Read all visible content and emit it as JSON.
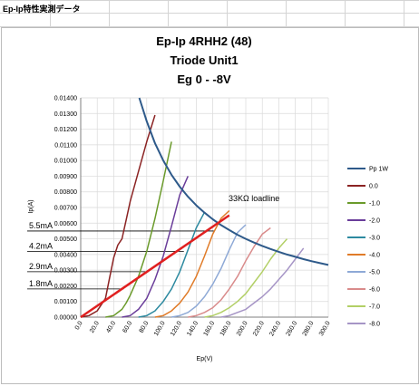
{
  "sheet": {
    "title": "Ep-Ip特性実測データ"
  },
  "chart_data": {
    "type": "line",
    "title_lines": [
      "Ep-Ip 4RHH2 (48)",
      "Triode Unit1",
      "Eg  0 - -8V"
    ],
    "xlabel": "Ep(V)",
    "ylabel": "Ip(A)",
    "xlim": [
      0,
      300
    ],
    "ylim": [
      0,
      0.014
    ],
    "x_ticks": [
      "0.0",
      "20.0",
      "40.0",
      "60.0",
      "80.0",
      "100.0",
      "120.0",
      "140.0",
      "160.0",
      "180.0",
      "200.0",
      "220.0",
      "240.0",
      "260.0",
      "280.0",
      "300.0"
    ],
    "y_ticks": [
      "0.00000",
      "0.00100",
      "0.00200",
      "0.00300",
      "0.00400",
      "0.00500",
      "0.00600",
      "0.00700",
      "0.00800",
      "0.00900",
      "0.01000",
      "0.01100",
      "0.01200",
      "0.01300",
      "0.01400"
    ],
    "grid": true,
    "legend_position": "right",
    "series": [
      {
        "name": "Pp 1W",
        "color": "#2e5a8a",
        "width": 2,
        "points": [
          [
            71,
            0.014
          ],
          [
            80,
            0.0125
          ],
          [
            90,
            0.0111
          ],
          [
            100,
            0.01
          ],
          [
            110,
            0.00909
          ],
          [
            120,
            0.00833
          ],
          [
            130,
            0.00769
          ],
          [
            140,
            0.00714
          ],
          [
            150,
            0.00667
          ],
          [
            160,
            0.00625
          ],
          [
            170,
            0.00588
          ],
          [
            180,
            0.00556
          ],
          [
            190,
            0.00526
          ],
          [
            200,
            0.005
          ],
          [
            210,
            0.00476
          ],
          [
            220,
            0.00455
          ],
          [
            230,
            0.00435
          ],
          [
            240,
            0.00417
          ],
          [
            250,
            0.004
          ],
          [
            260,
            0.00385
          ],
          [
            270,
            0.0037
          ],
          [
            280,
            0.00357
          ],
          [
            290,
            0.00345
          ],
          [
            300,
            0.00333
          ]
        ]
      },
      {
        "name": "0.0",
        "color": "#8b2323",
        "width": 1.5,
        "points": [
          [
            0,
            0
          ],
          [
            10,
            0.0001
          ],
          [
            20,
            0.0004
          ],
          [
            30,
            0.0012
          ],
          [
            35,
            0.0025
          ],
          [
            40,
            0.0038
          ],
          [
            45,
            0.0046
          ],
          [
            50,
            0.005
          ],
          [
            55,
            0.0062
          ],
          [
            60,
            0.0074
          ],
          [
            70,
            0.0093
          ],
          [
            80,
            0.0112
          ],
          [
            90,
            0.0129
          ]
        ]
      },
      {
        "name": "-1.0",
        "color": "#6a9a2a",
        "width": 1.5,
        "points": [
          [
            30,
            0
          ],
          [
            40,
            0.0001
          ],
          [
            50,
            0.0005
          ],
          [
            55,
            0.0009
          ],
          [
            60,
            0.0014
          ],
          [
            70,
            0.0026
          ],
          [
            80,
            0.0042
          ],
          [
            90,
            0.0063
          ],
          [
            100,
            0.0087
          ],
          [
            110,
            0.0112
          ]
        ]
      },
      {
        "name": "-2.0",
        "color": "#6a3d9a",
        "width": 1.5,
        "points": [
          [
            50,
            0
          ],
          [
            60,
            0.0001
          ],
          [
            70,
            0.0005
          ],
          [
            80,
            0.0012
          ],
          [
            90,
            0.0024
          ],
          [
            100,
            0.0039
          ],
          [
            110,
            0.0058
          ],
          [
            120,
            0.0078
          ],
          [
            130,
            0.009
          ]
        ]
      },
      {
        "name": "-3.0",
        "color": "#2d8aa0",
        "width": 1.5,
        "points": [
          [
            70,
            0
          ],
          [
            80,
            0.0001
          ],
          [
            90,
            0.0004
          ],
          [
            100,
            0.001
          ],
          [
            110,
            0.0018
          ],
          [
            120,
            0.0029
          ],
          [
            130,
            0.0043
          ],
          [
            140,
            0.0057
          ],
          [
            150,
            0.0067
          ]
        ]
      },
      {
        "name": "-4.0",
        "color": "#e07b28",
        "width": 1.5,
        "points": [
          [
            90,
            0
          ],
          [
            100,
            0.0001
          ],
          [
            110,
            0.0004
          ],
          [
            120,
            0.0009
          ],
          [
            130,
            0.0016
          ],
          [
            140,
            0.0026
          ],
          [
            150,
            0.0039
          ],
          [
            160,
            0.0053
          ],
          [
            170,
            0.0063
          ],
          [
            180,
            0.0068
          ]
        ]
      },
      {
        "name": "-5.0",
        "color": "#8ea9d6",
        "width": 1.5,
        "points": [
          [
            110,
            0
          ],
          [
            120,
            0.0001
          ],
          [
            130,
            0.0003
          ],
          [
            140,
            0.0007
          ],
          [
            150,
            0.0013
          ],
          [
            160,
            0.0021
          ],
          [
            170,
            0.0031
          ],
          [
            180,
            0.0043
          ],
          [
            190,
            0.0054
          ],
          [
            200,
            0.0059
          ]
        ]
      },
      {
        "name": "-6.0",
        "color": "#d98b8b",
        "width": 1.5,
        "points": [
          [
            130,
            0
          ],
          [
            140,
            0.0001
          ],
          [
            150,
            0.0003
          ],
          [
            160,
            0.0006
          ],
          [
            170,
            0.0011
          ],
          [
            180,
            0.0018
          ],
          [
            190,
            0.0026
          ],
          [
            200,
            0.0036
          ],
          [
            210,
            0.0045
          ],
          [
            220,
            0.0053
          ],
          [
            230,
            0.0057
          ]
        ]
      },
      {
        "name": "-7.0",
        "color": "#b2cf66",
        "width": 1.5,
        "points": [
          [
            150,
            0
          ],
          [
            160,
            0.0001
          ],
          [
            170,
            0.0003
          ],
          [
            180,
            0.0006
          ],
          [
            190,
            0.001
          ],
          [
            200,
            0.0015
          ],
          [
            210,
            0.0022
          ],
          [
            220,
            0.0029
          ],
          [
            230,
            0.0037
          ],
          [
            240,
            0.0044
          ],
          [
            250,
            0.005
          ]
        ]
      },
      {
        "name": "-8.0",
        "color": "#a695c6",
        "width": 1.5,
        "points": [
          [
            170,
            0
          ],
          [
            180,
            0.0001
          ],
          [
            190,
            0.0003
          ],
          [
            200,
            0.0005
          ],
          [
            210,
            0.0009
          ],
          [
            220,
            0.0013
          ],
          [
            230,
            0.0018
          ],
          [
            240,
            0.0024
          ],
          [
            250,
            0.003
          ],
          [
            260,
            0.0037
          ],
          [
            270,
            0.0044
          ]
        ]
      }
    ],
    "loadline": {
      "label": "33KΩ loadline",
      "color": "#e02020",
      "points": [
        [
          0,
          0
        ],
        [
          180,
          0.0065
        ]
      ]
    },
    "annotations": [
      {
        "label": "5.5mA",
        "y": 0.0055,
        "x_end": 162
      },
      {
        "label": "4.2mA",
        "y": 0.0042,
        "x_end": 125
      },
      {
        "label": "2.9mA",
        "y": 0.0029,
        "x_end": 82
      },
      {
        "label": "1.8mA",
        "y": 0.0018,
        "x_end": 52
      }
    ]
  }
}
